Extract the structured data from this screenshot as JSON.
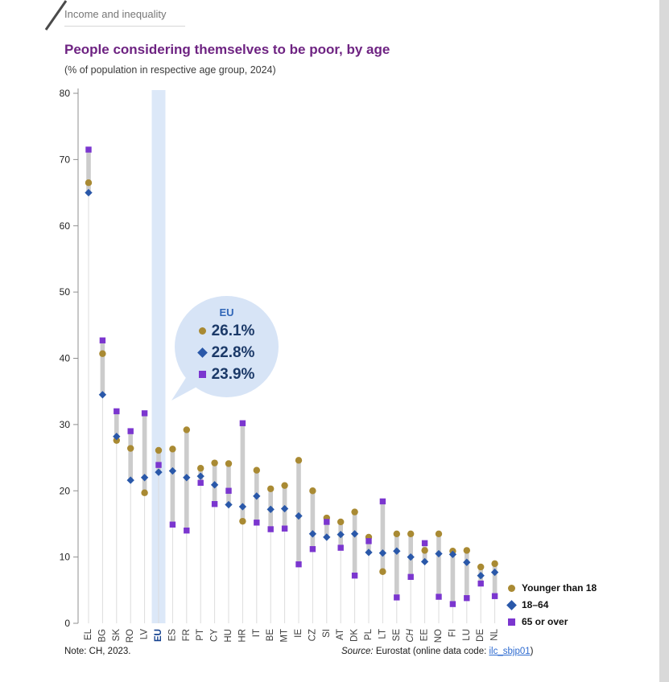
{
  "page": {
    "breadcrumb": "Income and inequality",
    "title": "People considering themselves to be poor, by age",
    "subtitle": "(% of population in respective age group, 2024)",
    "note": "Note: CH, 2023.",
    "source_prefix": "Source:",
    "source_mid": " Eurostat (online data code: ",
    "source_link": "ilc_sbjp01",
    "source_suffix": ")"
  },
  "colors": {
    "title": "#6e2382",
    "highlight_band": "#dce8f8",
    "callout_bg": "#d7e4f6",
    "callout_eu_label": "#3066b8",
    "callout_value_text": "#1b3968",
    "range_bar": "#cccccc",
    "stem": "#dcdcdc",
    "axis": "#8f8f8f",
    "tick_label": "#1f1f1f",
    "x_label": "#3c3c3c",
    "eu_label": "#14418f",
    "link": "#2e6bd0",
    "right_strip": "#d9d9d9"
  },
  "callout": {
    "label": "EU",
    "values": [
      "26.1%",
      "22.8%",
      "23.9%"
    ]
  },
  "chart_data": {
    "type": "scatter",
    "title": "People considering themselves to be poor, by age",
    "subtitle": "(% of population in respective age group, 2024)",
    "ylim": [
      0,
      80
    ],
    "ytick_interval": 10,
    "grid": false,
    "legend_position": "bottom-right",
    "highlight_category": "EU",
    "label_styles": {
      "EU": "bold-blue",
      "CH": "italic"
    },
    "categories": [
      "EL",
      "BG",
      "SK",
      "RO",
      "LV",
      "EU",
      "ES",
      "FR",
      "PT",
      "CY",
      "HU",
      "HR",
      "IT",
      "BE",
      "MT",
      "IE",
      "CZ",
      "SI",
      "AT",
      "DK",
      "PL",
      "LT",
      "SE",
      "CH",
      "EE",
      "NO",
      "FI",
      "LU",
      "DE",
      "NL"
    ],
    "series": [
      {
        "name": "Younger than 18",
        "marker": "circle",
        "color": "#a98a33",
        "values": [
          66.5,
          40.7,
          27.6,
          26.4,
          19.7,
          26.1,
          26.3,
          29.2,
          23.4,
          24.2,
          24.1,
          15.4,
          23.1,
          20.3,
          20.8,
          24.6,
          20.0,
          15.9,
          15.3,
          16.8,
          13.0,
          7.8,
          13.5,
          13.5,
          11.0,
          13.5,
          10.9,
          11.0,
          8.5,
          9.0
        ]
      },
      {
        "name": "18–64",
        "marker": "diamond",
        "color": "#2a58a9",
        "values": [
          65.0,
          34.5,
          28.2,
          21.6,
          22.0,
          22.8,
          23.0,
          22.0,
          22.2,
          20.9,
          17.9,
          17.6,
          19.2,
          17.2,
          17.3,
          16.2,
          13.5,
          13.0,
          13.4,
          13.5,
          10.7,
          10.6,
          10.9,
          10.0,
          9.3,
          10.5,
          10.4,
          9.2,
          7.2,
          7.7
        ]
      },
      {
        "name": "65 or over",
        "marker": "square",
        "color": "#7b36cf",
        "values": [
          71.5,
          42.7,
          32.0,
          29.0,
          31.7,
          23.9,
          14.9,
          14.0,
          21.2,
          18.0,
          20.0,
          30.2,
          15.2,
          14.2,
          14.3,
          8.9,
          11.2,
          15.3,
          11.4,
          7.2,
          12.4,
          18.4,
          3.9,
          7.0,
          12.1,
          4.0,
          2.9,
          3.8,
          6.0,
          4.1
        ]
      }
    ]
  }
}
